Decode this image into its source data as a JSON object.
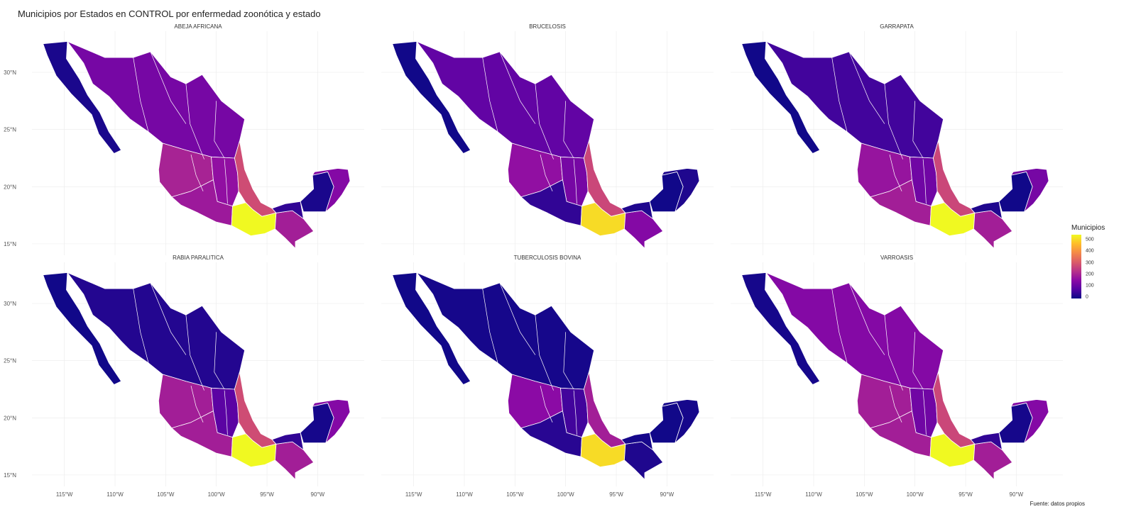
{
  "title": "Municipios por Estados en CONTROL por enfermedad zoonótica y estado",
  "caption": "Fuente: datos propios",
  "legend": {
    "title": "Municipios",
    "ticks": [
      "500",
      "400",
      "300",
      "200",
      "100",
      "0"
    ],
    "range": [
      0,
      560
    ],
    "colors": [
      "#0d0887",
      "#5402a3",
      "#8b0aa5",
      "#b83289",
      "#db5c68",
      "#f48849",
      "#febd2a",
      "#f0f921"
    ]
  },
  "axes": {
    "lat_labels": [
      "30°N",
      "25°N",
      "20°N",
      "15°N"
    ],
    "lon_labels": [
      "115°W",
      "110°W",
      "105°W",
      "100°W",
      "95°W",
      "90°W"
    ]
  },
  "panels": [
    {
      "name": "ABEJA AFRICANA",
      "levels": {
        "north": 130,
        "bc": 15,
        "central": 170,
        "west": 210,
        "veracruz": 290,
        "oaxaca": 560,
        "chiapas": 200,
        "guerrero": 190,
        "tabasco": 40,
        "yucatan": 150,
        "campeche": 15
      }
    },
    {
      "name": "BRUCELOSIS",
      "levels": {
        "north": 100,
        "bc": 5,
        "central": 130,
        "west": 170,
        "veracruz": 280,
        "oaxaca": 520,
        "chiapas": 150,
        "guerrero": 40,
        "tabasco": 20,
        "yucatan": 20,
        "campeche": 5
      }
    },
    {
      "name": "GARRAPATA",
      "levels": {
        "north": 60,
        "bc": 5,
        "central": 120,
        "west": 180,
        "veracruz": 280,
        "oaxaca": 560,
        "chiapas": 200,
        "guerrero": 200,
        "tabasco": 20,
        "yucatan": 130,
        "campeche": 5
      }
    },
    {
      "name": "RABIA PARALITICA",
      "levels": {
        "north": 25,
        "bc": 5,
        "central": 90,
        "west": 200,
        "veracruz": 290,
        "oaxaca": 560,
        "chiapas": 200,
        "guerrero": 200,
        "tabasco": 40,
        "yucatan": 150,
        "campeche": 10
      }
    },
    {
      "name": "TUBERCULOSIS BOVINA",
      "levels": {
        "north": 10,
        "bc": 5,
        "central": 60,
        "west": 160,
        "veracruz": 200,
        "oaxaca": 520,
        "chiapas": 20,
        "guerrero": 30,
        "tabasco": 10,
        "yucatan": 10,
        "campeche": 5
      }
    },
    {
      "name": "VARROASIS",
      "levels": {
        "north": 150,
        "bc": 10,
        "central": 120,
        "west": 200,
        "veracruz": 280,
        "oaxaca": 560,
        "chiapas": 200,
        "guerrero": 200,
        "tabasco": 40,
        "yucatan": 150,
        "campeche": 10
      }
    }
  ]
}
